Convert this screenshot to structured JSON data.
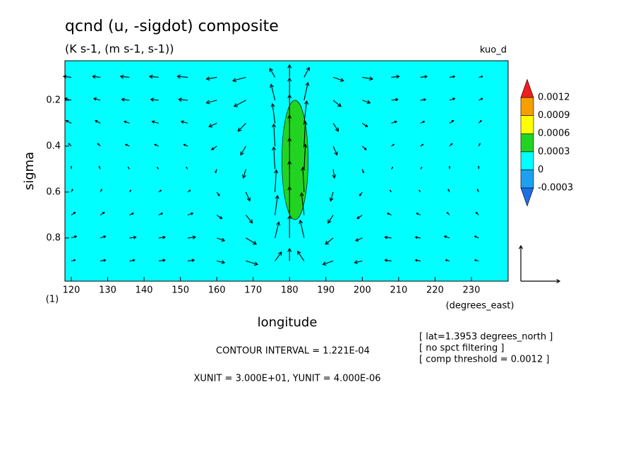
{
  "chart_data": {
    "type": "vector-contour",
    "title": "qcnd (u, -sigdot) composite",
    "subtitle": "(K s-1, (m s-1, s-1))",
    "case_label": "kuo_d",
    "xlabel": "longitude",
    "xunits_label": "(degrees_east)",
    "ylabel": "sigma",
    "corner_label": "(1)",
    "xlim": [
      118.25,
      240.1
    ],
    "ylim": [
      0.028,
      0.988
    ],
    "y_inverted": true,
    "xticks": [
      120,
      130,
      140,
      150,
      160,
      170,
      180,
      190,
      200,
      210,
      220,
      230
    ],
    "yticks": [
      0.2,
      0.4,
      0.6,
      0.8
    ],
    "colorbar": {
      "levels": [
        -0.0003,
        0,
        0.0003,
        0.0006,
        0.0009,
        0.0012
      ],
      "colors": [
        "#1e6ee6",
        "#1ea0f0",
        "#00ffff",
        "#22d422",
        "#ffff00",
        "#f5a000",
        "#f01e1e"
      ]
    },
    "field": {
      "background": 0.0001,
      "blobs": [
        {
          "lon": 181.5,
          "sigma": 0.46,
          "lon_halfwidth": 3.6,
          "sigma_halfwidth": 0.26,
          "value": 0.00045
        }
      ]
    },
    "vectors": {
      "lon": [
        120,
        128,
        136,
        144,
        152,
        160,
        168,
        176,
        180,
        184,
        192,
        200,
        208,
        216,
        224,
        232
      ],
      "sigma": [
        0.1,
        0.2,
        0.3,
        0.4,
        0.5,
        0.6,
        0.7,
        0.8,
        0.9
      ],
      "u": [
        [
          -6,
          -6,
          -7,
          -7,
          -8,
          -8,
          -10,
          -4,
          0,
          4,
          8,
          8,
          6,
          5,
          4,
          3
        ],
        [
          -5,
          -5,
          -6,
          -6,
          -7,
          -8,
          -9,
          -3,
          0,
          3,
          6,
          6,
          5,
          4,
          4,
          3
        ],
        [
          -4,
          -4,
          -4,
          -5,
          -5,
          -6,
          -6,
          -2,
          0,
          2,
          4,
          4,
          4,
          3,
          3,
          2
        ],
        [
          -2,
          -2,
          -3,
          -3,
          -3,
          -4,
          -4,
          -1,
          0,
          1,
          3,
          3,
          2,
          2,
          2,
          1
        ],
        [
          0,
          -1,
          -1,
          -1,
          -1,
          -1,
          -2,
          -1,
          0,
          1,
          1,
          1,
          1,
          1,
          0,
          0
        ],
        [
          1,
          1,
          1,
          2,
          2,
          2,
          3,
          1,
          0,
          -1,
          -2,
          -2,
          -1,
          -1,
          -1,
          -1
        ],
        [
          3,
          3,
          3,
          3,
          4,
          4,
          5,
          2,
          0,
          -2,
          -4,
          -4,
          -3,
          -3,
          -2,
          -2
        ],
        [
          4,
          4,
          5,
          5,
          6,
          6,
          8,
          3,
          0,
          -3,
          -6,
          -5,
          -5,
          -4,
          -4,
          -3
        ],
        [
          3,
          4,
          4,
          5,
          5,
          6,
          9,
          5,
          0,
          -5,
          -8,
          -6,
          -5,
          -4,
          -3,
          -3
        ]
      ],
      "w": [
        [
          1e-07,
          1e-07,
          1e-07,
          1e-07,
          1e-07,
          -2e-07,
          -4e-07,
          1e-06,
          1.4e-06,
          1.1e-06,
          -4e-07,
          -2e-07,
          1e-07,
          1e-07,
          1e-07,
          1e-07
        ],
        [
          2e-07,
          2e-07,
          1e-07,
          1e-07,
          1e-07,
          -3e-07,
          -7e-07,
          1.8e-06,
          2.5e-06,
          2e-06,
          -7e-07,
          -3e-07,
          1e-07,
          1e-07,
          2e-07,
          2e-07
        ],
        [
          3e-07,
          3e-07,
          2e-07,
          2e-07,
          2e-07,
          -4e-07,
          -9e-07,
          2.2e-06,
          3.2e-06,
          2.5e-06,
          -9e-07,
          -4e-07,
          2e-07,
          2e-07,
          3e-07,
          3e-07
        ],
        [
          3e-07,
          3e-07,
          2e-07,
          2e-07,
          2e-07,
          -4e-07,
          -1e-06,
          2.5e-06,
          3.5e-06,
          2.8e-06,
          -1e-06,
          -4e-07,
          2e-07,
          2e-07,
          3e-07,
          3e-07
        ],
        [
          3e-07,
          3e-07,
          2e-07,
          2e-07,
          2e-07,
          -4e-07,
          -1e-06,
          2.5e-06,
          3.5e-06,
          2.8e-06,
          -1e-06,
          -4e-07,
          2e-07,
          2e-07,
          3e-07,
          3e-07
        ],
        [
          3e-07,
          3e-07,
          2e-07,
          2e-07,
          2e-07,
          -4e-07,
          -1e-06,
          2.5e-06,
          3.5e-06,
          2.8e-06,
          -1e-06,
          -4e-07,
          2e-07,
          2e-07,
          3e-07,
          3e-07
        ],
        [
          3e-07,
          3e-07,
          2e-07,
          2e-07,
          2e-07,
          -4e-07,
          -9e-07,
          2.2e-06,
          3.2e-06,
          2.5e-06,
          -9e-07,
          -4e-07,
          2e-07,
          2e-07,
          3e-07,
          3e-07
        ],
        [
          2e-07,
          2e-07,
          1e-07,
          1e-07,
          1e-07,
          -3e-07,
          -7e-07,
          1.8e-06,
          2.5e-06,
          2e-06,
          -7e-07,
          -3e-07,
          1e-07,
          1e-07,
          2e-07,
          2e-07
        ],
        [
          1e-07,
          1e-07,
          1e-07,
          1e-07,
          1e-07,
          -2e-07,
          -4e-07,
          1e-06,
          1.4e-06,
          1.1e-06,
          -4e-07,
          -2e-07,
          1e-07,
          1e-07,
          1e-07,
          1e-07
        ]
      ],
      "xunit": 30,
      "yunit": 4e-06
    },
    "annotations": [
      "CONTOUR INTERVAL = 1.221E-04",
      "XUNIT = 3.000E+01, YUNIT = 4.000E-06"
    ],
    "info_lines": [
      "[ lat=1.3953 degrees_north ]",
      "[ no spct filtering ]",
      "[ comp threshold = 0.0012 ]"
    ]
  }
}
